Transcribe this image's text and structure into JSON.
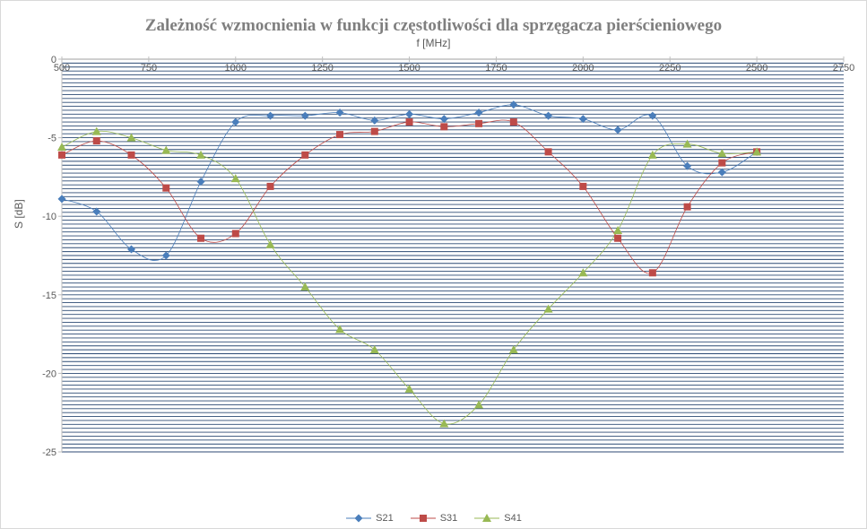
{
  "chart_data": {
    "type": "line",
    "title": "Zależność wzmocnienia w funkcji częstotliwości dla sprzęgacza pierścieniowego",
    "xlabel": "f [MHz]",
    "ylabel": "S [dB]",
    "xlim": [
      500,
      2750
    ],
    "ylim": [
      -25,
      0
    ],
    "x_ticks": [
      "500",
      "750",
      "1000",
      "1250",
      "1500",
      "1750",
      "2000",
      "2250",
      "2500",
      "2750"
    ],
    "y_ticks": [
      "0",
      "-5",
      "-10",
      "-15",
      "-20",
      "-25"
    ],
    "x_position": "top",
    "grid": true,
    "legend_position": "bottom",
    "x": [
      500,
      600,
      700,
      800,
      900,
      1000,
      1100,
      1200,
      1300,
      1400,
      1500,
      1600,
      1700,
      1800,
      1900,
      2000,
      2100,
      2200,
      2300,
      2400,
      2500
    ],
    "series": [
      {
        "name": "S21",
        "color": "#4a7ebb",
        "marker": "diamond",
        "values": [
          -8.9,
          -9.7,
          -12.1,
          -12.5,
          -7.8,
          -4.0,
          -3.6,
          -3.6,
          -3.4,
          -3.9,
          -3.5,
          -3.8,
          -3.4,
          -2.9,
          -3.6,
          -3.8,
          -4.5,
          -3.6,
          -6.8,
          -7.2,
          -5.9
        ]
      },
      {
        "name": "S31",
        "color": "#be4b48",
        "marker": "square",
        "values": [
          -6.1,
          -5.2,
          -6.1,
          -8.2,
          -11.4,
          -11.1,
          -8.1,
          -6.1,
          -4.8,
          -4.6,
          -4.0,
          -4.3,
          -4.1,
          -4.0,
          -5.9,
          -8.1,
          -11.4,
          -13.6,
          -9.4,
          -6.6,
          -5.9
        ]
      },
      {
        "name": "S41",
        "color": "#98b954",
        "marker": "triangle",
        "values": [
          -5.6,
          -4.6,
          -5.0,
          -5.8,
          -6.1,
          -7.6,
          -11.8,
          -14.5,
          -17.2,
          -18.5,
          -21.0,
          -23.2,
          -22.0,
          -18.5,
          -15.9,
          -13.6,
          -10.9,
          -6.1,
          -5.4,
          -6.0,
          -5.9
        ]
      }
    ]
  }
}
